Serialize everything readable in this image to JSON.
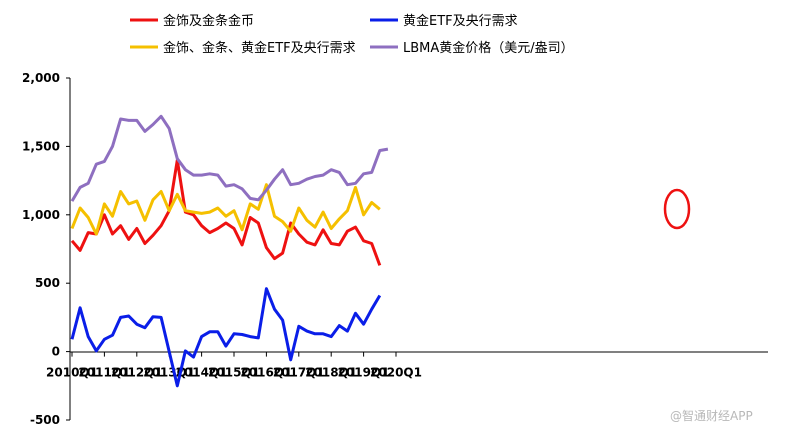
{
  "chart_data": {
    "type": "line",
    "x_ticks": [
      "2010Q1",
      "2011Q1",
      "2012Q1",
      "2013Q1",
      "2014Q1",
      "2015Q1",
      "2016Q1",
      "2017Q1",
      "2018Q1",
      "2019Q1",
      "2020Q1"
    ],
    "ylim": [
      -500,
      2000
    ],
    "y_ticks": [
      2000,
      1500,
      1000,
      500,
      0,
      -500
    ],
    "y_tick_labels": [
      "2,000",
      "1,500",
      "1,000",
      "500",
      "0",
      "-500"
    ],
    "legend_placement": "top",
    "series": [
      {
        "name": "金饰及金条金币",
        "color": "#ee1111",
        "values": [
          810,
          740,
          870,
          860,
          1000,
          860,
          920,
          820,
          900,
          790,
          850,
          920,
          1030,
          1400,
          1020,
          1000,
          920,
          870,
          900,
          940,
          900,
          780,
          980,
          940,
          760,
          680,
          720,
          940,
          860,
          800,
          780,
          890,
          790,
          780,
          880,
          910,
          810,
          790,
          630
        ]
      },
      {
        "name": "黄金ETF及央行需求",
        "color": "#0a1ee8",
        "values": [
          90,
          320,
          110,
          5,
          90,
          120,
          250,
          260,
          200,
          175,
          255,
          250,
          0,
          -250,
          5,
          -40,
          110,
          145,
          145,
          40,
          130,
          125,
          110,
          100,
          460,
          310,
          230,
          -60,
          185,
          150,
          130,
          130,
          110,
          190,
          150,
          280,
          200,
          310,
          410
        ]
      },
      {
        "name": "金饰、金条、黄金ETF及央行需求",
        "color": "#f5c000",
        "values": [
          900,
          1050,
          980,
          860,
          1080,
          990,
          1170,
          1080,
          1100,
          960,
          1110,
          1170,
          1030,
          1150,
          1030,
          1020,
          1010,
          1020,
          1050,
          990,
          1030,
          890,
          1080,
          1040,
          1220,
          990,
          950,
          880,
          1050,
          960,
          910,
          1020,
          900,
          970,
          1030,
          1200,
          1000,
          1090,
          1040
        ]
      },
      {
        "name": "LBMA黄金价格（美元/盎司）",
        "color": "#8e6fc0",
        "values": [
          1100,
          1200,
          1230,
          1370,
          1390,
          1500,
          1700,
          1690,
          1690,
          1610,
          1660,
          1720,
          1630,
          1410,
          1330,
          1290,
          1290,
          1300,
          1290,
          1210,
          1220,
          1190,
          1120,
          1110,
          1180,
          1260,
          1330,
          1220,
          1230,
          1260,
          1280,
          1290,
          1330,
          1310,
          1220,
          1230,
          1300,
          1310,
          1470,
          1480
        ]
      }
    ],
    "annotation": "red-circle"
  },
  "watermark": {
    "text": "@智通财经APP"
  }
}
